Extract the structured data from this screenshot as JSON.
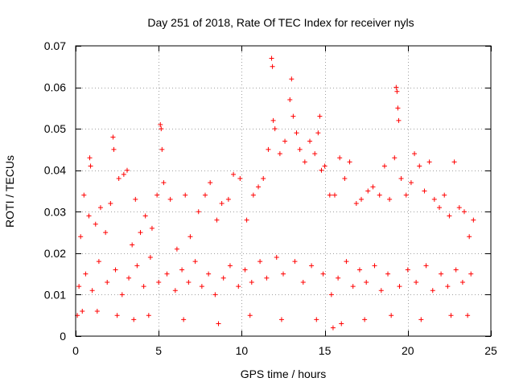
{
  "chart_data": {
    "type": "scatter",
    "title": "Day 251 of 2018, Rate Of TEC Index for receiver nyls",
    "xlabel": "GPS time / hours",
    "ylabel": "ROTI / TECUs",
    "xlim": [
      0,
      25
    ],
    "ylim": [
      0,
      0.07
    ],
    "xticks": [
      0,
      5,
      10,
      15,
      20,
      25
    ],
    "xtick_labels": [
      "0",
      "5",
      "10",
      "15",
      "20",
      "25"
    ],
    "yticks": [
      0,
      0.01,
      0.02,
      0.03,
      0.04,
      0.05,
      0.06,
      0.07
    ],
    "ytick_labels": [
      "0",
      "0.01",
      "0.02",
      "0.03",
      "0.04",
      "0.05",
      "0.06",
      "0.07"
    ],
    "grid": true,
    "marker": "+",
    "color": "#ff0000",
    "series": [
      {
        "name": "ROTI",
        "points": [
          [
            0.1,
            0.005
          ],
          [
            0.3,
            0.024
          ],
          [
            0.5,
            0.034
          ],
          [
            0.8,
            0.029
          ],
          [
            0.85,
            0.043
          ],
          [
            0.9,
            0.041
          ],
          [
            1.2,
            0.027
          ],
          [
            1.5,
            0.031
          ],
          [
            1.8,
            0.025
          ],
          [
            2.1,
            0.032
          ],
          [
            2.25,
            0.048
          ],
          [
            2.3,
            0.045
          ],
          [
            2.6,
            0.038
          ],
          [
            2.9,
            0.039
          ],
          [
            3.1,
            0.04
          ],
          [
            3.4,
            0.022
          ],
          [
            3.6,
            0.033
          ],
          [
            3.9,
            0.025
          ],
          [
            4.2,
            0.029
          ],
          [
            4.6,
            0.026
          ],
          [
            4.9,
            0.034
          ],
          [
            5.1,
            0.051
          ],
          [
            5.15,
            0.05
          ],
          [
            5.2,
            0.045
          ],
          [
            5.3,
            0.037
          ],
          [
            5.7,
            0.033
          ],
          [
            6.1,
            0.021
          ],
          [
            6.6,
            0.034
          ],
          [
            6.9,
            0.024
          ],
          [
            7.4,
            0.03
          ],
          [
            7.8,
            0.034
          ],
          [
            8.1,
            0.037
          ],
          [
            8.5,
            0.028
          ],
          [
            8.8,
            0.032
          ],
          [
            9.2,
            0.033
          ],
          [
            9.5,
            0.039
          ],
          [
            9.9,
            0.038
          ],
          [
            10.3,
            0.028
          ],
          [
            10.7,
            0.034
          ],
          [
            11.0,
            0.036
          ],
          [
            11.3,
            0.038
          ],
          [
            11.6,
            0.045
          ],
          [
            11.8,
            0.067
          ],
          [
            11.85,
            0.065
          ],
          [
            11.9,
            0.052
          ],
          [
            12.0,
            0.05
          ],
          [
            12.3,
            0.044
          ],
          [
            12.6,
            0.047
          ],
          [
            12.9,
            0.057
          ],
          [
            13.0,
            0.062
          ],
          [
            13.1,
            0.053
          ],
          [
            13.3,
            0.049
          ],
          [
            13.5,
            0.045
          ],
          [
            13.8,
            0.042
          ],
          [
            14.1,
            0.047
          ],
          [
            14.4,
            0.044
          ],
          [
            14.6,
            0.049
          ],
          [
            14.7,
            0.053
          ],
          [
            14.8,
            0.04
          ],
          [
            15.0,
            0.041
          ],
          [
            15.3,
            0.034
          ],
          [
            15.6,
            0.034
          ],
          [
            15.9,
            0.043
          ],
          [
            16.2,
            0.038
          ],
          [
            16.5,
            0.042
          ],
          [
            16.9,
            0.032
          ],
          [
            17.2,
            0.033
          ],
          [
            17.6,
            0.035
          ],
          [
            17.9,
            0.036
          ],
          [
            18.3,
            0.034
          ],
          [
            18.6,
            0.041
          ],
          [
            18.9,
            0.033
          ],
          [
            19.2,
            0.043
          ],
          [
            19.3,
            0.06
          ],
          [
            19.35,
            0.059
          ],
          [
            19.4,
            0.055
          ],
          [
            19.45,
            0.052
          ],
          [
            19.6,
            0.038
          ],
          [
            19.9,
            0.034
          ],
          [
            20.2,
            0.037
          ],
          [
            20.4,
            0.044
          ],
          [
            20.7,
            0.041
          ],
          [
            21.0,
            0.035
          ],
          [
            21.3,
            0.042
          ],
          [
            21.6,
            0.033
          ],
          [
            21.9,
            0.031
          ],
          [
            22.2,
            0.034
          ],
          [
            22.5,
            0.029
          ],
          [
            22.8,
            0.042
          ],
          [
            23.1,
            0.031
          ],
          [
            23.4,
            0.03
          ],
          [
            23.7,
            0.024
          ],
          [
            23.95,
            0.028
          ],
          [
            0.2,
            0.012
          ],
          [
            0.6,
            0.015
          ],
          [
            1.0,
            0.011
          ],
          [
            1.4,
            0.018
          ],
          [
            1.9,
            0.013
          ],
          [
            2.4,
            0.016
          ],
          [
            2.8,
            0.01
          ],
          [
            3.2,
            0.014
          ],
          [
            3.7,
            0.017
          ],
          [
            4.1,
            0.012
          ],
          [
            4.5,
            0.019
          ],
          [
            5.0,
            0.013
          ],
          [
            5.5,
            0.015
          ],
          [
            6.0,
            0.011
          ],
          [
            6.4,
            0.016
          ],
          [
            6.8,
            0.013
          ],
          [
            7.2,
            0.018
          ],
          [
            7.6,
            0.012
          ],
          [
            8.0,
            0.015
          ],
          [
            8.4,
            0.01
          ],
          [
            8.9,
            0.014
          ],
          [
            9.3,
            0.017
          ],
          [
            9.8,
            0.012
          ],
          [
            10.2,
            0.016
          ],
          [
            10.6,
            0.013
          ],
          [
            11.1,
            0.018
          ],
          [
            11.5,
            0.014
          ],
          [
            12.1,
            0.019
          ],
          [
            12.5,
            0.015
          ],
          [
            13.2,
            0.018
          ],
          [
            13.7,
            0.013
          ],
          [
            14.2,
            0.017
          ],
          [
            14.9,
            0.015
          ],
          [
            15.4,
            0.01
          ],
          [
            15.8,
            0.014
          ],
          [
            16.3,
            0.018
          ],
          [
            16.7,
            0.012
          ],
          [
            17.1,
            0.016
          ],
          [
            17.5,
            0.013
          ],
          [
            18.0,
            0.017
          ],
          [
            18.4,
            0.011
          ],
          [
            18.8,
            0.015
          ],
          [
            19.5,
            0.012
          ],
          [
            20.0,
            0.016
          ],
          [
            20.5,
            0.013
          ],
          [
            21.1,
            0.017
          ],
          [
            21.5,
            0.011
          ],
          [
            22.0,
            0.015
          ],
          [
            22.4,
            0.012
          ],
          [
            22.9,
            0.016
          ],
          [
            23.3,
            0.013
          ],
          [
            23.8,
            0.015
          ],
          [
            0.4,
            0.006
          ],
          [
            1.3,
            0.006
          ],
          [
            2.5,
            0.005
          ],
          [
            3.5,
            0.004
          ],
          [
            4.4,
            0.005
          ],
          [
            6.5,
            0.004
          ],
          [
            8.6,
            0.003
          ],
          [
            10.5,
            0.005
          ],
          [
            12.4,
            0.004
          ],
          [
            14.5,
            0.004
          ],
          [
            15.5,
            0.002
          ],
          [
            16.0,
            0.003
          ],
          [
            17.4,
            0.004
          ],
          [
            19.0,
            0.005
          ],
          [
            20.8,
            0.004
          ],
          [
            22.6,
            0.005
          ],
          [
            23.6,
            0.005
          ]
        ]
      }
    ]
  }
}
